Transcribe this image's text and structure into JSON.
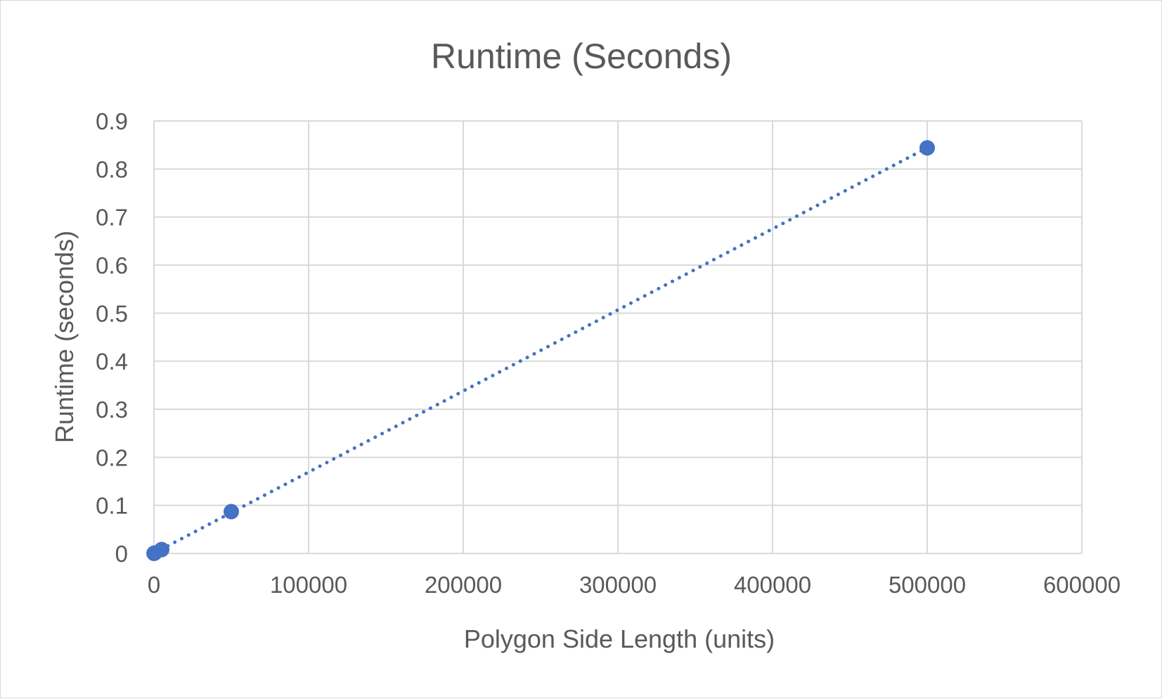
{
  "chart_data": {
    "type": "scatter",
    "title": "Runtime (Seconds)",
    "xlabel": "Polygon Side Length (units)",
    "ylabel": "Runtime (seconds)",
    "xlim": [
      0,
      600000
    ],
    "ylim": [
      0,
      0.9
    ],
    "x_ticks": [
      "0",
      "100000",
      "200000",
      "300000",
      "400000",
      "500000",
      "600000"
    ],
    "y_ticks": [
      "0",
      "0.1",
      "0.2",
      "0.3",
      "0.4",
      "0.5",
      "0.6",
      "0.7",
      "0.8",
      "0.9"
    ],
    "grid": true,
    "legend": "none",
    "series": [
      {
        "points": [
          {
            "x": 50,
            "y": 0.0001
          },
          {
            "x": 500,
            "y": 0.001
          },
          {
            "x": 5000,
            "y": 0.008
          },
          {
            "x": 50000,
            "y": 0.087
          },
          {
            "x": 500000,
            "y": 0.844
          }
        ],
        "trendline": "linear, dotted",
        "color": "#4472c4"
      }
    ]
  }
}
